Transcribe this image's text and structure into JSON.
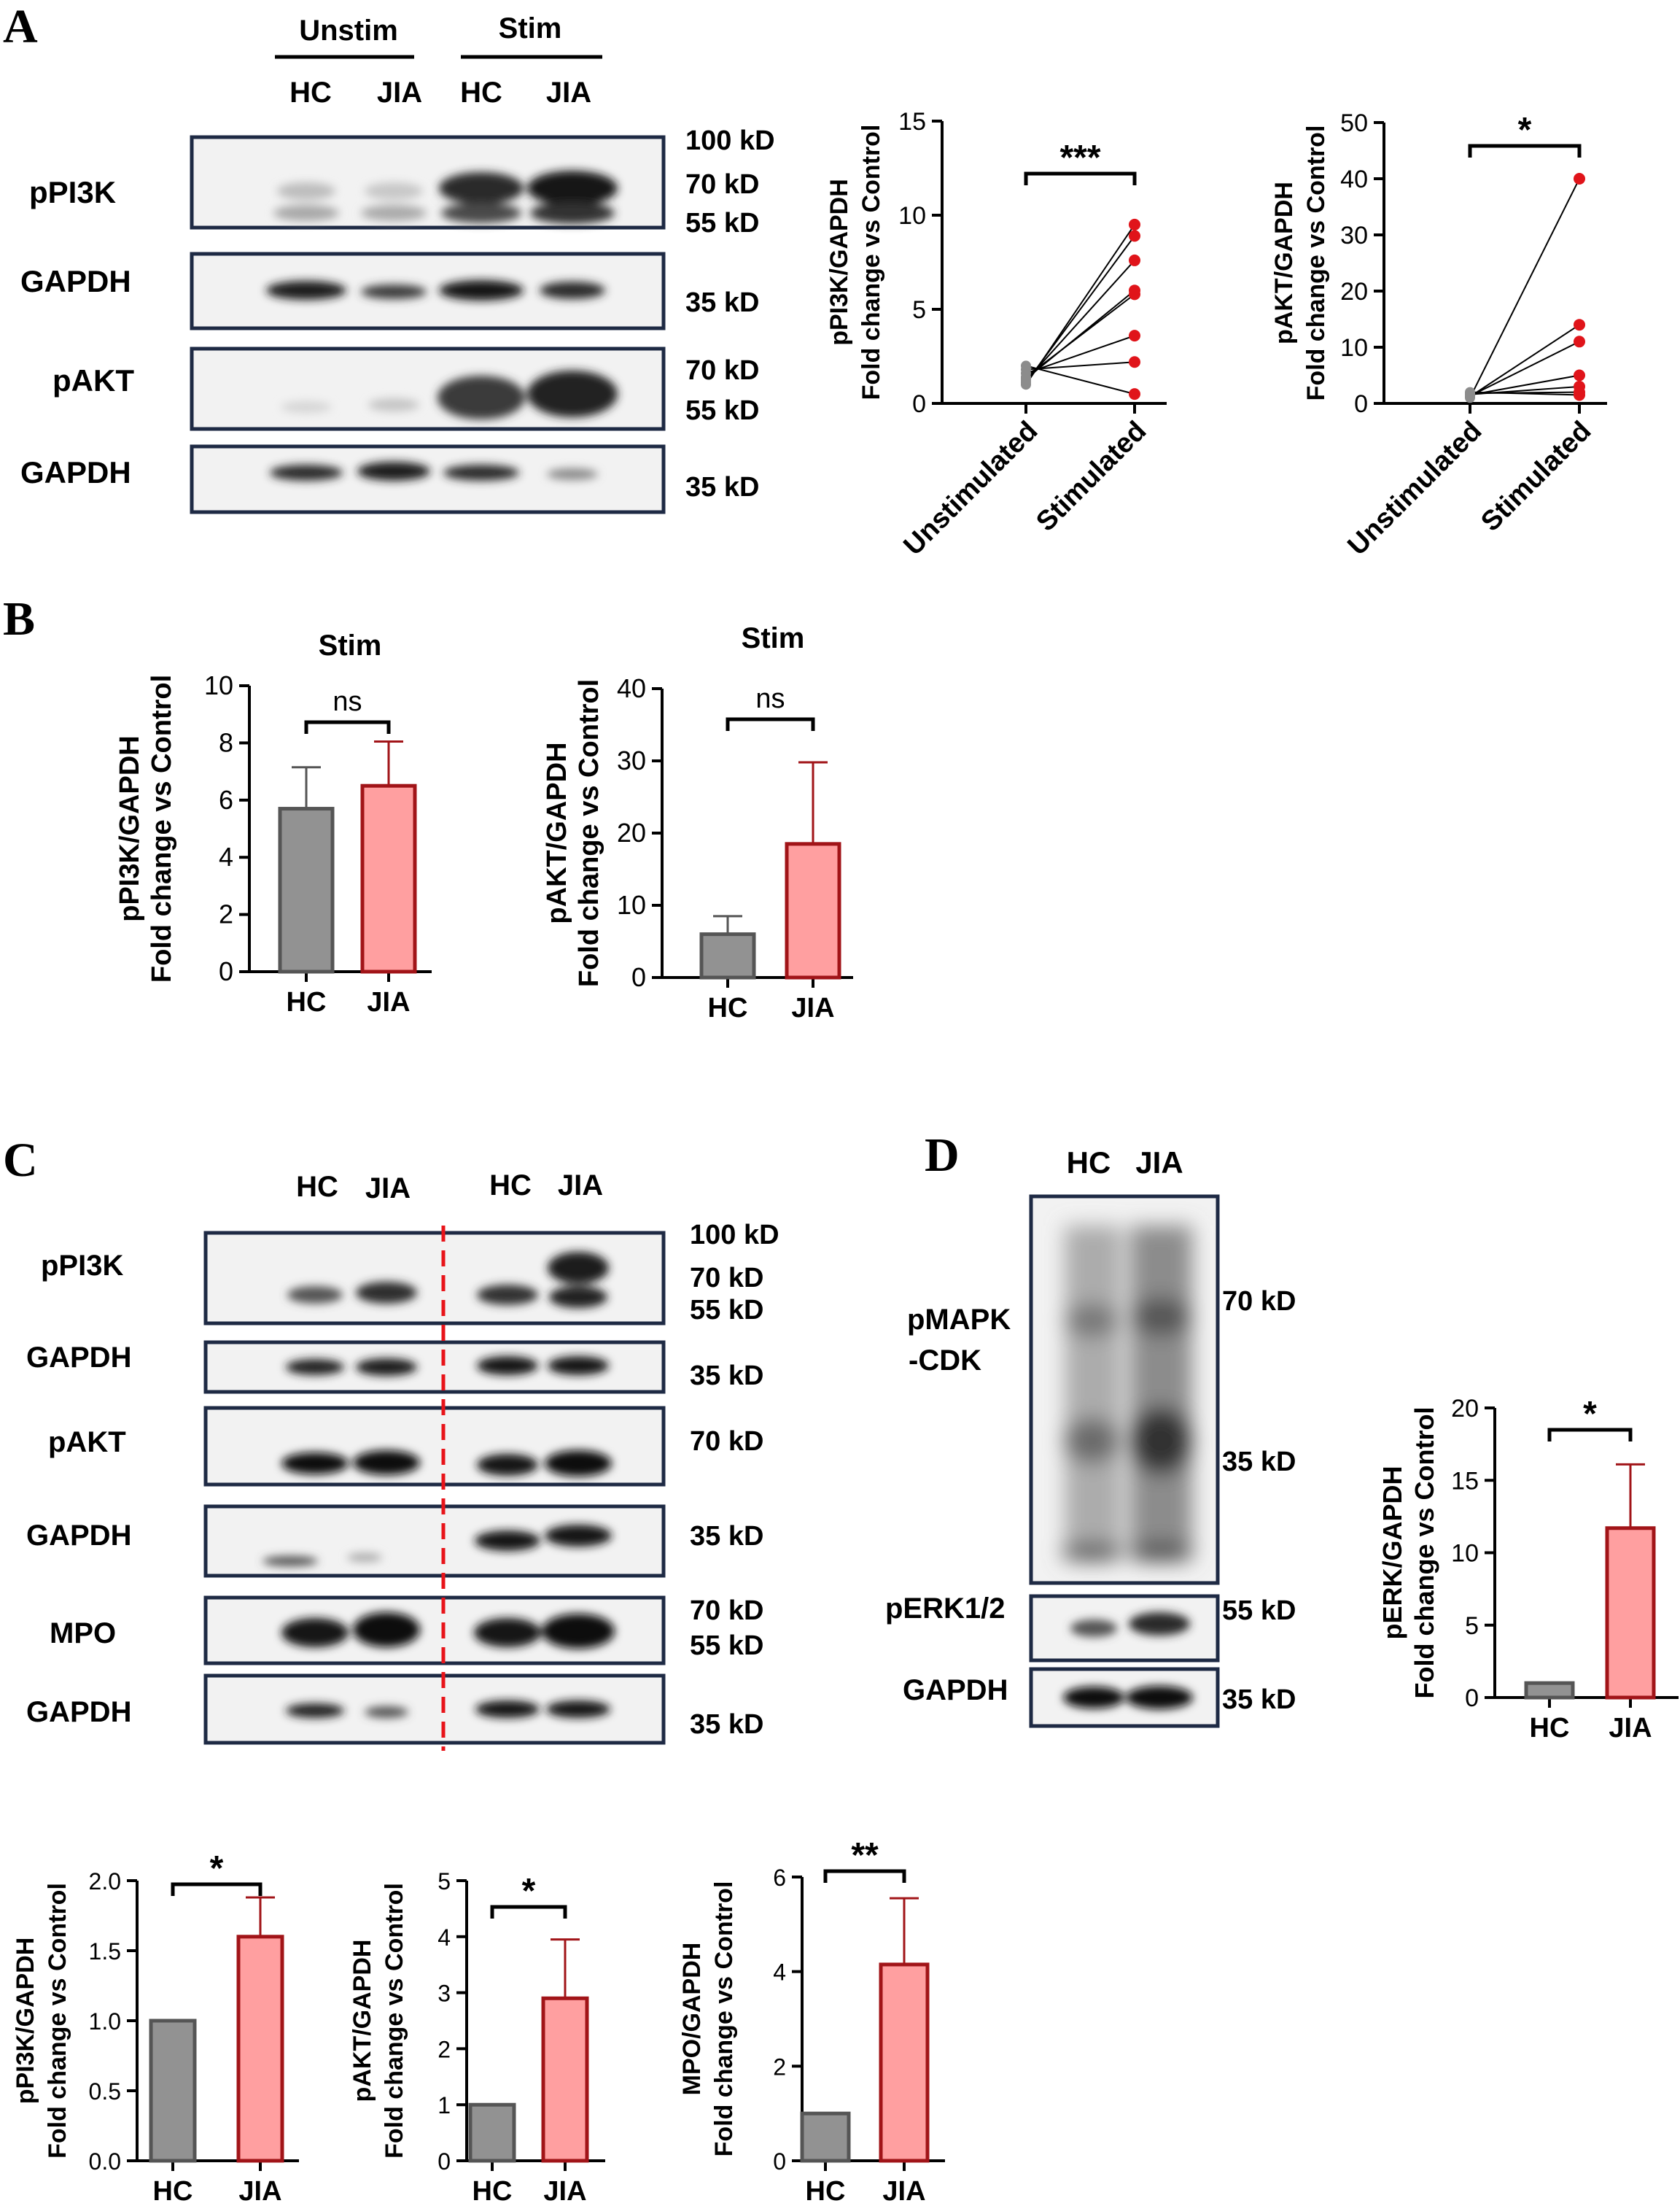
{
  "panels": {
    "A": "A",
    "B": "B",
    "C": "C",
    "D": "D"
  },
  "blot_a": {
    "groups": [
      "Unstim",
      "Stim"
    ],
    "lanes": [
      "HC",
      "JIA",
      "HC",
      "JIA"
    ],
    "labels": [
      "pPI3K",
      "GAPDH",
      "pAKT",
      "GAPDH"
    ],
    "markers": [
      "100 kD",
      "70 kD",
      "55 kD",
      "35 kD",
      "70 kD",
      "55 kD",
      "35 kD"
    ]
  },
  "blot_c": {
    "lanes": [
      "HC",
      "JIA",
      "HC",
      "JIA"
    ],
    "labels": [
      "pPI3K",
      "GAPDH",
      "pAKT",
      "GAPDH",
      "MPO",
      "GAPDH"
    ],
    "markers": [
      "100 kD",
      "70 kD",
      "55 kD",
      "35 kD",
      "70 kD",
      "35 kD",
      "70 kD",
      "55 kD",
      "35 kD"
    ]
  },
  "blot_d": {
    "lanes": [
      "HC",
      "JIA"
    ],
    "labels": [
      "pMAPK",
      "-CDK",
      "pERK1/2",
      "GAPDH"
    ],
    "markers": [
      "70 kD",
      "35 kD",
      "55 kD",
      "35 kD"
    ]
  },
  "colors": {
    "hc_fill": "#929292",
    "jia_fill": "#ff9fa0",
    "jia_edge": "#a11418",
    "unstim_dot": "#8c8c8c",
    "stim_dot": "#e0141a",
    "blot_frame": "#1e2a44"
  },
  "chart_data": [
    {
      "id": "A_pi3k",
      "type": "scatter",
      "categories": [
        "Unstimulated",
        "Stimulated"
      ],
      "ylabel": [
        "pPI3K/GAPDH",
        "Fold change vs Control"
      ],
      "ylim": [
        0,
        15
      ],
      "yticks": [
        0,
        5,
        10,
        15
      ],
      "pairs": [
        [
          1.0,
          9.5
        ],
        [
          1.1,
          8.9
        ],
        [
          1.2,
          7.6
        ],
        [
          1.3,
          6.0
        ],
        [
          1.4,
          5.8
        ],
        [
          1.6,
          3.6
        ],
        [
          1.8,
          2.2
        ],
        [
          2.0,
          0.5
        ]
      ],
      "significance": "***"
    },
    {
      "id": "A_akt",
      "type": "scatter",
      "categories": [
        "Unstimulated",
        "Stimulated"
      ],
      "ylabel": [
        "pAKT/GAPDH",
        "Fold change vs Control"
      ],
      "ylim": [
        0,
        50
      ],
      "yticks": [
        0,
        10,
        20,
        30,
        40,
        50
      ],
      "pairs": [
        [
          1.0,
          40.0
        ],
        [
          1.2,
          14.0
        ],
        [
          1.3,
          11.0
        ],
        [
          1.5,
          5.0
        ],
        [
          1.6,
          3.0
        ],
        [
          1.8,
          2.0
        ],
        [
          2.0,
          1.5
        ]
      ],
      "significance": "*"
    },
    {
      "id": "B_pi3k",
      "type": "bar",
      "title": "Stim",
      "categories": [
        "HC",
        "JIA"
      ],
      "values": [
        5.7,
        6.5
      ],
      "errors": [
        1.45,
        1.55
      ],
      "ylabel": [
        "pPI3K/GAPDH",
        "Fold change vs Control"
      ],
      "ylim": [
        0,
        10
      ],
      "yticks": [
        0,
        2,
        4,
        6,
        8,
        10
      ],
      "significance": "ns"
    },
    {
      "id": "B_akt",
      "type": "bar",
      "title": "Stim",
      "categories": [
        "HC",
        "JIA"
      ],
      "values": [
        6.0,
        18.5
      ],
      "errors": [
        2.5,
        11.3
      ],
      "ylabel": [
        "pAKT/GAPDH",
        "Fold change vs Control"
      ],
      "ylim": [
        0,
        40
      ],
      "yticks": [
        0,
        10,
        20,
        30,
        40
      ],
      "significance": "ns"
    },
    {
      "id": "D_erk",
      "type": "bar",
      "categories": [
        "HC",
        "JIA"
      ],
      "values": [
        1.0,
        11.7
      ],
      "errors": [
        0,
        4.4
      ],
      "ylabel": [
        "pERK/GAPDH",
        "Fold change vs Control"
      ],
      "ylim": [
        0,
        20
      ],
      "yticks": [
        0,
        5,
        10,
        15,
        20
      ],
      "significance": "*"
    },
    {
      "id": "C_pi3k",
      "type": "bar",
      "categories": [
        "HC",
        "JIA"
      ],
      "values": [
        1.0,
        1.6
      ],
      "errors": [
        0,
        0.28
      ],
      "ylabel": [
        "pPI3K/GAPDH",
        "Fold change vs Control"
      ],
      "ylim": [
        0,
        2.0
      ],
      "yticks": [
        "0.0",
        "0.5",
        "1.0",
        "1.5",
        "2.0"
      ],
      "significance": "*"
    },
    {
      "id": "C_akt",
      "type": "bar",
      "categories": [
        "HC",
        "JIA"
      ],
      "values": [
        1.0,
        2.9
      ],
      "errors": [
        0,
        1.05
      ],
      "ylabel": [
        "pAKT/GAPDH",
        "Fold change vs Control"
      ],
      "ylim": [
        0,
        5
      ],
      "yticks": [
        0,
        1,
        2,
        3,
        4,
        5
      ],
      "significance": "*"
    },
    {
      "id": "C_mpo",
      "type": "bar",
      "categories": [
        "HC",
        "JIA"
      ],
      "values": [
        1.0,
        4.15
      ],
      "errors": [
        0,
        1.4
      ],
      "ylabel": [
        "MPO/GAPDH",
        "Fold change vs Control"
      ],
      "ylim": [
        0,
        6
      ],
      "yticks": [
        0,
        2,
        4,
        6
      ],
      "significance": "**"
    }
  ]
}
